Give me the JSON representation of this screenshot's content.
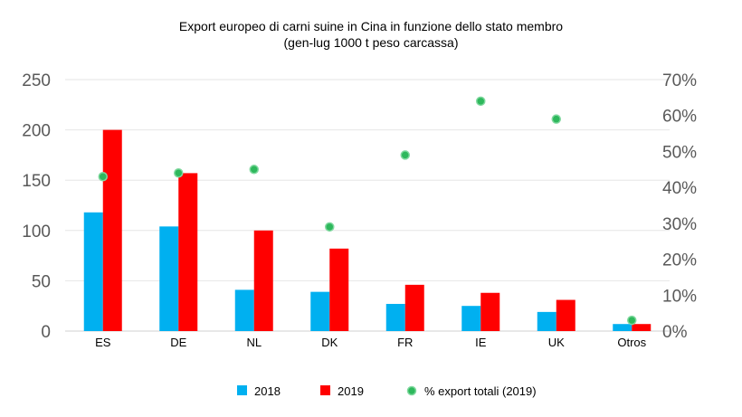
{
  "chart_data": {
    "type": "bar",
    "title": "Export europeo di carni suine in Cina in funzione dello stato membro",
    "subtitle": "(gen-lug  1000 t peso carcassa)",
    "categories": [
      "ES",
      "DE",
      "NL",
      "DK",
      "FR",
      "IE",
      "UK",
      "Otros"
    ],
    "series": [
      {
        "name": "2018",
        "kind": "bar",
        "axis": "left",
        "color": "#00B0F0",
        "values": [
          118,
          104,
          41,
          39,
          27,
          25,
          19,
          7
        ]
      },
      {
        "name": "2019",
        "kind": "bar",
        "axis": "left",
        "color": "#FF0000",
        "values": [
          200,
          157,
          100,
          82,
          46,
          38,
          31,
          7
        ]
      },
      {
        "name": "% export totali (2019)",
        "kind": "scatter",
        "axis": "right",
        "color": "#2EB85C",
        "values": [
          43,
          44,
          45,
          29,
          49,
          64,
          59,
          3
        ]
      }
    ],
    "ylim": [
      0,
      250
    ],
    "yticks": [
      "0",
      "50",
      "100",
      "150",
      "200",
      "250"
    ],
    "y2lim": [
      0,
      70
    ],
    "y2ticks": [
      "0%",
      "10%",
      "20%",
      "30%",
      "40%",
      "50%",
      "60%",
      "70%"
    ],
    "grid": true,
    "legend": "bottom"
  }
}
